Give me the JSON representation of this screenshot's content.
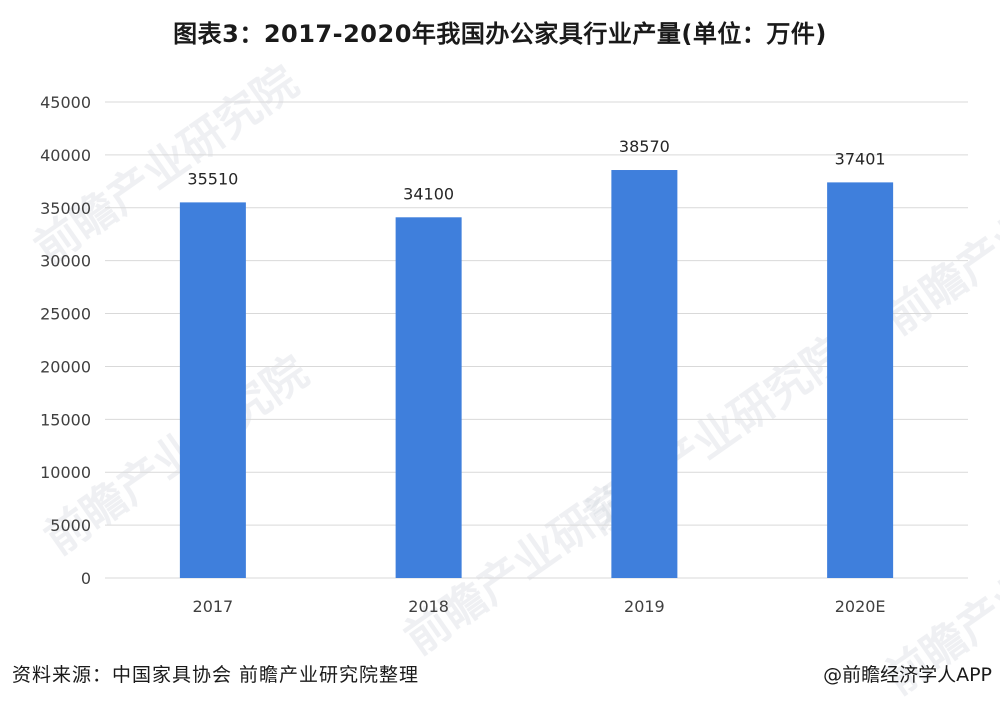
{
  "title": "图表3：2017-2020年我国办公家具行业产量(单位：万件)",
  "watermark_text": "前瞻产业研究院",
  "footer": {
    "source": "资料来源：中国家具协会 前瞻产业研究院整理",
    "credit": "@前瞻经济学人APP"
  },
  "colors": {
    "bar": "#3f7fdc",
    "grid": "#d9d9d9",
    "axis_text": "#404040"
  },
  "chart_data": {
    "type": "bar",
    "title": "图表3：2017-2020年我国办公家具行业产量(单位：万件)",
    "categories": [
      "2017",
      "2018",
      "2019",
      "2020E"
    ],
    "values": [
      35510,
      34100,
      38570,
      37401
    ],
    "data_labels": [
      "35510",
      "34100",
      "38570",
      "37401"
    ],
    "ylim": [
      0,
      45000
    ],
    "yticks": [
      0,
      5000,
      10000,
      15000,
      20000,
      25000,
      30000,
      35000,
      40000,
      45000
    ],
    "ytick_labels": [
      "0",
      "5000",
      "10000",
      "15000",
      "20000",
      "25000",
      "30000",
      "35000",
      "40000",
      "45000"
    ],
    "xlabel": "",
    "ylabel": "",
    "grid": true,
    "legend": "none"
  }
}
